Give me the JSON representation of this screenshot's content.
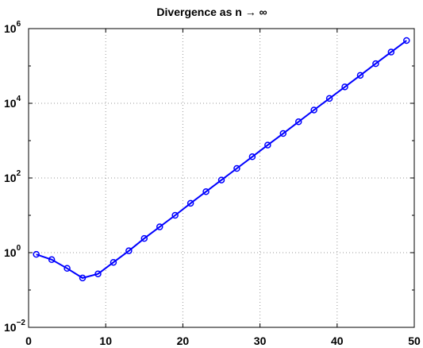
{
  "chart_data": {
    "type": "line",
    "title": "Divergence as n → ∞",
    "xlabel": "",
    "ylabel": "",
    "xlim": [
      0,
      50
    ],
    "ylim": [
      0.01,
      1000000
    ],
    "y_scale": "log",
    "grid": true,
    "x_ticks": [
      {
        "value": 0,
        "label": "0"
      },
      {
        "value": 10,
        "label": "10"
      },
      {
        "value": 20,
        "label": "20"
      },
      {
        "value": 30,
        "label": "30"
      },
      {
        "value": 40,
        "label": "40"
      },
      {
        "value": 50,
        "label": "50"
      }
    ],
    "y_ticks": [
      {
        "value": 0.01,
        "base": "10",
        "exp": "−2"
      },
      {
        "value": 1,
        "base": "10",
        "exp": "0"
      },
      {
        "value": 100,
        "base": "10",
        "exp": "2"
      },
      {
        "value": 10000,
        "base": "10",
        "exp": "4"
      },
      {
        "value": 1000000,
        "base": "10",
        "exp": "6"
      }
    ],
    "series": [
      {
        "color": "#0000ff",
        "marker": "circle",
        "x": [
          1,
          3,
          5,
          7,
          9,
          11,
          13,
          15,
          17,
          19,
          21,
          23,
          25,
          27,
          29,
          31,
          33,
          35,
          37,
          39,
          41,
          43,
          45,
          47,
          49
        ],
        "y": [
          0.9,
          0.65,
          0.38,
          0.21,
          0.27,
          0.55,
          1.12,
          2.4,
          4.9,
          10,
          21,
          43,
          88,
          180,
          370,
          760,
          1550,
          3200,
          6600,
          13500,
          27500,
          56000,
          115000,
          235000,
          480000
        ]
      }
    ]
  }
}
